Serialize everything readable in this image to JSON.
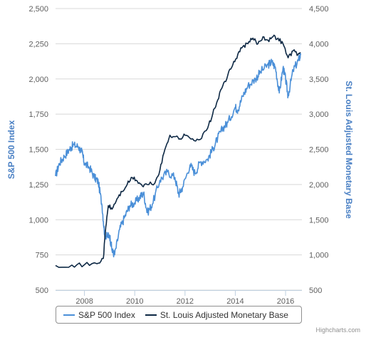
{
  "chart_data": {
    "type": "line",
    "x_ticks": [
      "2008",
      "2010",
      "2012",
      "2014",
      "2016"
    ],
    "y_left": {
      "title": "S&P 500 Index",
      "ticks": [
        "500",
        "750",
        "1,000",
        "1,250",
        "1,500",
        "1,750",
        "2,000",
        "2,250",
        "2,500"
      ],
      "range": [
        500,
        2500
      ],
      "color": "#4a80c4"
    },
    "y_right": {
      "title": "St. Louis Adjusted Monetary Base",
      "ticks": [
        "500",
        "1,000",
        "1,500",
        "2,000",
        "2,500",
        "3,000",
        "3,500",
        "4,000",
        "4,500"
      ],
      "range": [
        500,
        4500
      ],
      "color": "#4a80c4"
    },
    "grid": true,
    "legend_position": "bottom",
    "series": [
      {
        "name": "S&P 500 Index",
        "axis": "left",
        "color": "#4a8fd8",
        "x": [
          2006.85,
          2007.0,
          2007.2,
          2007.4,
          2007.55,
          2007.75,
          2007.9,
          2008.0,
          2008.2,
          2008.4,
          2008.55,
          2008.7,
          2008.8,
          2008.9,
          2009.0,
          2009.1,
          2009.2,
          2009.4,
          2009.6,
          2009.8,
          2010.0,
          2010.2,
          2010.35,
          2010.5,
          2010.7,
          2011.0,
          2011.3,
          2011.6,
          2011.75,
          2011.9,
          2012.2,
          2012.4,
          2012.6,
          2012.9,
          2013.1,
          2013.3,
          2013.5,
          2013.7,
          2014.0,
          2014.1,
          2014.3,
          2014.5,
          2014.8,
          2015.0,
          2015.3,
          2015.45,
          2015.6,
          2015.75,
          2015.9,
          2016.0,
          2016.1,
          2016.3,
          2016.5,
          2016.6
        ],
        "y": [
          1310,
          1400,
          1450,
          1500,
          1530,
          1520,
          1480,
          1400,
          1370,
          1300,
          1270,
          1100,
          900,
          880,
          890,
          780,
          750,
          930,
          1020,
          1100,
          1120,
          1160,
          1190,
          1050,
          1110,
          1280,
          1340,
          1300,
          1180,
          1230,
          1390,
          1330,
          1410,
          1430,
          1500,
          1580,
          1650,
          1690,
          1800,
          1780,
          1880,
          1950,
          2000,
          2050,
          2100,
          2120,
          2080,
          1900,
          2080,
          2000,
          1880,
          2060,
          2130,
          2170
        ]
      },
      {
        "name": "St. Louis Adjusted Monetary Base",
        "axis": "right",
        "color": "#0d2844",
        "x": [
          2006.85,
          2007.5,
          2008.0,
          2008.5,
          2008.75,
          2008.85,
          2008.95,
          2009.1,
          2009.3,
          2009.5,
          2009.7,
          2009.9,
          2010.1,
          2010.3,
          2010.5,
          2010.8,
          2011.0,
          2011.2,
          2011.4,
          2011.6,
          2011.8,
          2012.0,
          2012.3,
          2012.6,
          2012.9,
          2013.1,
          2013.3,
          2013.5,
          2013.7,
          2013.9,
          2014.1,
          2014.3,
          2014.5,
          2014.7,
          2014.9,
          2015.1,
          2015.3,
          2015.5,
          2015.7,
          2015.9,
          2016.1,
          2016.3,
          2016.5,
          2016.6
        ],
        "y": [
          850,
          855,
          860,
          875,
          950,
          1400,
          1700,
          1650,
          1800,
          1900,
          2000,
          2100,
          2050,
          1980,
          2000,
          2020,
          2200,
          2500,
          2700,
          2680,
          2650,
          2700,
          2650,
          2640,
          2800,
          3000,
          3200,
          3400,
          3550,
          3700,
          3850,
          3960,
          4000,
          4080,
          4000,
          4100,
          4050,
          4100,
          4080,
          4000,
          3800,
          3900,
          3850,
          3870
        ]
      }
    ]
  },
  "credits": "Highcharts.com"
}
